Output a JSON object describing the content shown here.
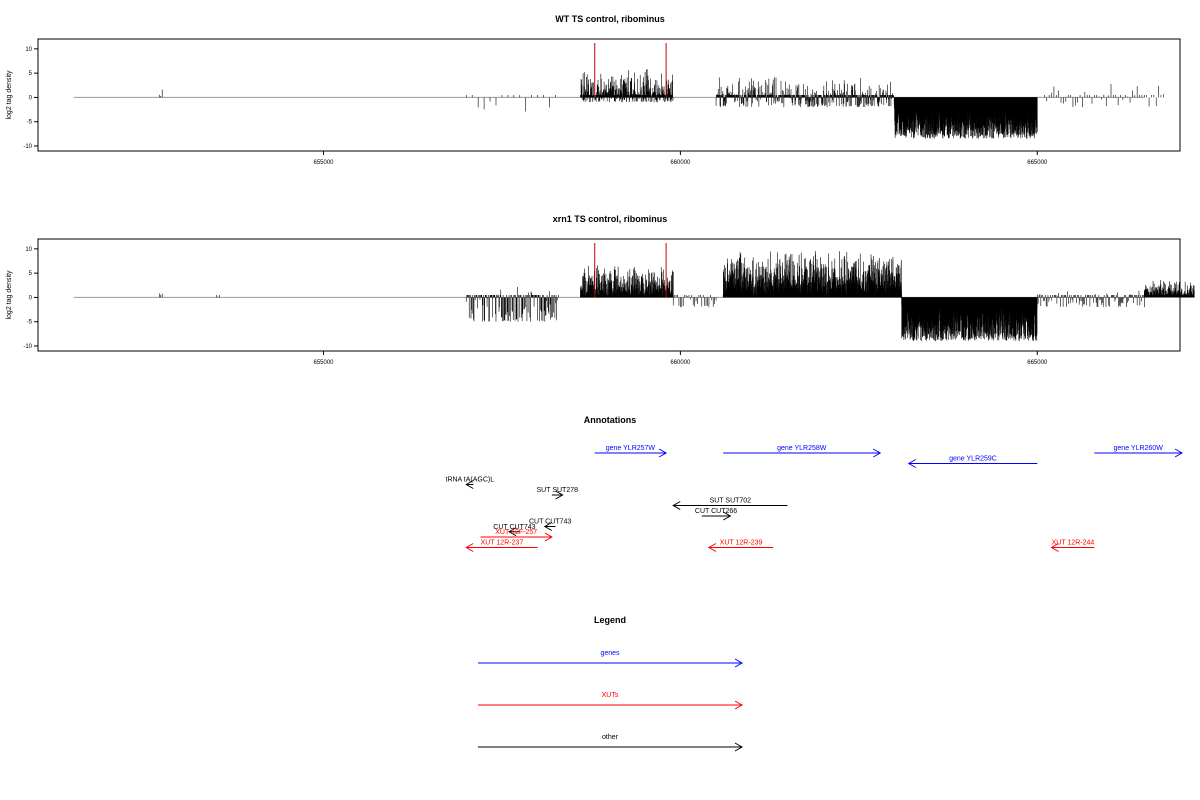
{
  "colors": {
    "gene": "#0000ff",
    "xut": "#ff0000",
    "other": "#000000",
    "baseline": "#999999",
    "marker": "#cc0000"
  },
  "chart_data": [
    {
      "type": "bar",
      "title": "WT TS control, ribominus",
      "xlabel": "",
      "ylabel": "log2 tag density",
      "xlim": [
        651000,
        667000
      ],
      "ylim": [
        -10,
        11
      ],
      "yticks": [
        -10,
        -5,
        0,
        5,
        10
      ],
      "ytick_labels": [
        "-10",
        "-5",
        "0",
        "5",
        "10"
      ],
      "xticks": [
        655000,
        660000,
        665000
      ],
      "xtick_labels": [
        "655000",
        "660000",
        "665000"
      ],
      "marker_lines": [
        658800,
        659800
      ],
      "segments": [
        {
          "start": 652700,
          "end": 652750,
          "min": 0,
          "max": 3,
          "density": 0.05,
          "seed": 1
        },
        {
          "start": 657000,
          "end": 658300,
          "min": -4,
          "max": 2,
          "density": 0.012,
          "seed": 2
        },
        {
          "start": 658600,
          "end": 659900,
          "min": -1,
          "max": 6,
          "density": 0.35,
          "seed": 3
        },
        {
          "start": 660500,
          "end": 663000,
          "min": -2,
          "max": 5,
          "density": 0.2,
          "seed": 4
        },
        {
          "start": 663000,
          "end": 665000,
          "min": -8.5,
          "max": -1.5,
          "density": 0.6,
          "seed": 5,
          "negative": true
        },
        {
          "start": 665100,
          "end": 666800,
          "min": -2,
          "max": 3.5,
          "density": 0.03,
          "seed": 6
        }
      ]
    },
    {
      "type": "bar",
      "title": "xrn1 TS control, ribominus",
      "xlabel": "",
      "ylabel": "log2 tag density",
      "xlim": [
        651000,
        667000
      ],
      "ylim": [
        -10,
        11
      ],
      "yticks": [
        -10,
        -5,
        0,
        5,
        10
      ],
      "ytick_labels": [
        "-10",
        "-5",
        "0",
        "5",
        "10"
      ],
      "xticks": [
        655000,
        660000,
        665000
      ],
      "xtick_labels": [
        "655000",
        "660000",
        "665000"
      ],
      "marker_lines": [
        658800,
        659800
      ],
      "segments": [
        {
          "start": 652700,
          "end": 652750,
          "min": 0,
          "max": 3,
          "density": 0.05,
          "seed": 11
        },
        {
          "start": 653500,
          "end": 653550,
          "min": 0,
          "max": 1,
          "density": 0.05,
          "seed": 12
        },
        {
          "start": 657000,
          "end": 658300,
          "min": -5,
          "max": 3,
          "density": 0.12,
          "seed": 13
        },
        {
          "start": 658600,
          "end": 659900,
          "min": 0,
          "max": 7,
          "density": 0.5,
          "seed": 14
        },
        {
          "start": 659900,
          "end": 660500,
          "min": -2,
          "max": 1,
          "density": 0.05,
          "seed": 15
        },
        {
          "start": 660600,
          "end": 663100,
          "min": 0,
          "max": 10,
          "density": 0.6,
          "seed": 16
        },
        {
          "start": 663100,
          "end": 665000,
          "min": -9,
          "max": -1,
          "density": 0.6,
          "seed": 17,
          "negative": true
        },
        {
          "start": 665000,
          "end": 666500,
          "min": -2,
          "max": 2,
          "density": 0.08,
          "seed": 18
        },
        {
          "start": 666500,
          "end": 667200,
          "min": 0,
          "max": 4,
          "density": 0.4,
          "seed": 19
        }
      ]
    }
  ],
  "annotations": {
    "title": "Annotations",
    "items": [
      {
        "label": "gene YLR257W",
        "kind": "gene",
        "x1": 658800,
        "x2": 659800,
        "dir": "right",
        "row": 0
      },
      {
        "label": "gene YLR258W",
        "kind": "gene",
        "x1": 660600,
        "x2": 662800,
        "dir": "right",
        "row": 0
      },
      {
        "label": "gene YLR259C",
        "kind": "gene",
        "x1": 663200,
        "x2": 665000,
        "dir": "left",
        "row": 1
      },
      {
        "label": "gene YLR260W",
        "kind": "gene",
        "x1": 665800,
        "x2": 667500,
        "dir": "right",
        "row": 0
      },
      {
        "label": "tRNA tA(AGC)L",
        "kind": "other",
        "x1": 657000,
        "x2": 657100,
        "dir": "left",
        "row": 3
      },
      {
        "label": "SUT SUT278",
        "kind": "other",
        "x1": 658200,
        "x2": 658350,
        "dir": "right",
        "row": 4
      },
      {
        "label": "SUT SUT702",
        "kind": "other",
        "x1": 659900,
        "x2": 661500,
        "dir": "left",
        "row": 5
      },
      {
        "label": "CUT CUT266",
        "kind": "other",
        "x1": 660300,
        "x2": 660700,
        "dir": "right",
        "row": 6
      },
      {
        "label": "CUT CUT743",
        "kind": "other",
        "x1": 658100,
        "x2": 658250,
        "dir": "left",
        "row": 7
      },
      {
        "label": "CUT CUT743",
        "kind": "other",
        "x1": 657600,
        "x2": 657750,
        "dir": "left",
        "row": 7.5
      },
      {
        "label": "XUT 12F-257",
        "kind": "xut",
        "x1": 657200,
        "x2": 658200,
        "dir": "right",
        "row": 8
      },
      {
        "label": "XUT 12R-237",
        "kind": "xut",
        "x1": 657000,
        "x2": 658000,
        "dir": "left",
        "row": 9
      },
      {
        "label": "XUT 12R-239",
        "kind": "xut",
        "x1": 660400,
        "x2": 661300,
        "dir": "left",
        "row": 9
      },
      {
        "label": "XUT 12R-244",
        "kind": "xut",
        "x1": 665200,
        "x2": 665800,
        "dir": "left",
        "row": 9
      }
    ]
  },
  "legend": {
    "title": "Legend",
    "items": [
      {
        "label": "genes",
        "kind": "gene"
      },
      {
        "label": "XUTs",
        "kind": "xut"
      },
      {
        "label": "other",
        "kind": "other"
      }
    ]
  }
}
